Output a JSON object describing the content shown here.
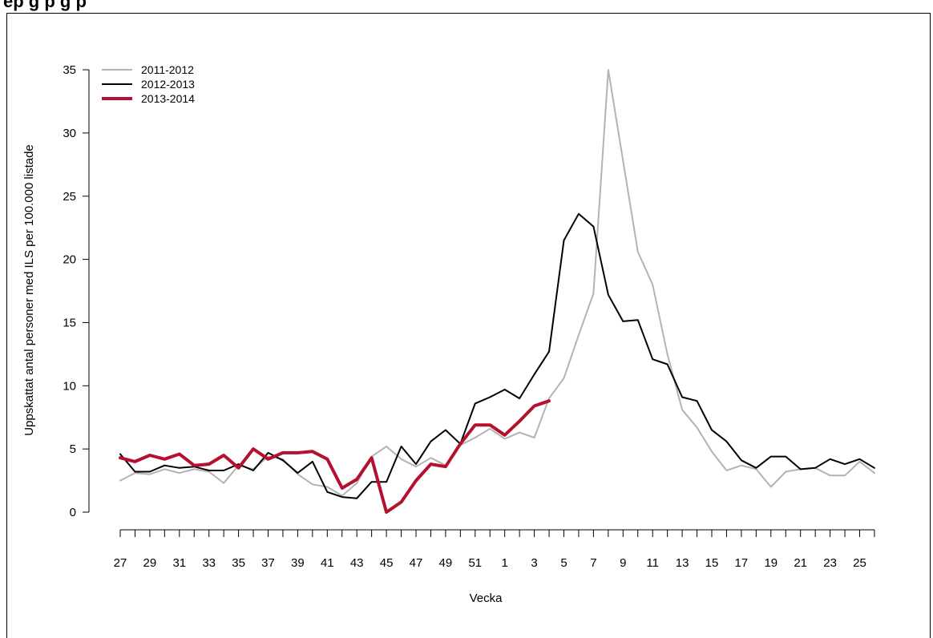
{
  "chart_data": {
    "type": "line",
    "title": "ep                                                                    g p                         g                             p",
    "xlabel": "Vecka",
    "ylabel": "Uppskattat antal personer med ILS per 100.000 listade",
    "ylim": [
      0,
      35
    ],
    "yticks": [
      0,
      5,
      10,
      15,
      20,
      25,
      30,
      35
    ],
    "weeks": [
      27,
      28,
      29,
      30,
      31,
      32,
      33,
      34,
      35,
      36,
      37,
      38,
      39,
      40,
      41,
      42,
      43,
      44,
      45,
      46,
      47,
      48,
      49,
      50,
      51,
      52,
      1,
      2,
      3,
      4,
      5,
      6,
      7,
      8,
      9,
      10,
      11,
      12,
      13,
      14,
      15,
      16,
      17,
      18,
      19,
      20,
      21,
      22,
      23,
      24,
      25,
      26
    ],
    "xtick_labels": [
      "27",
      "29",
      "31",
      "33",
      "35",
      "37",
      "39",
      "41",
      "43",
      "45",
      "47",
      "49",
      "51",
      "1",
      "3",
      "5",
      "7",
      "9",
      "11",
      "13",
      "15",
      "17",
      "19",
      "21",
      "23",
      "25"
    ],
    "legend_position": "top-left",
    "grid": false,
    "series": [
      {
        "name": "2011-2012",
        "color": "#b3b3b3",
        "values": [
          2.5,
          3.1,
          3.0,
          3.4,
          3.1,
          3.4,
          3.2,
          2.3,
          3.7,
          3.4,
          4.4,
          4.2,
          3.0,
          2.2,
          2.0,
          1.3,
          2.3,
          4.4,
          5.2,
          4.2,
          3.6,
          4.3,
          3.7,
          5.3,
          5.9,
          6.6,
          5.8,
          6.3,
          5.9,
          9.0,
          10.6,
          14.0,
          17.3,
          35.0,
          27.8,
          20.6,
          18.0,
          12.5,
          8.1,
          6.7,
          4.8,
          3.3,
          3.7,
          3.4,
          2.0,
          3.2,
          3.4,
          3.5,
          2.9,
          2.9,
          4.0,
          3.1
        ]
      },
      {
        "name": "2012-2013",
        "color": "#000000",
        "values": [
          4.6,
          3.2,
          3.2,
          3.7,
          3.5,
          3.6,
          3.3,
          3.3,
          3.8,
          3.3,
          4.7,
          4.1,
          3.1,
          4.0,
          1.6,
          1.2,
          1.1,
          2.4,
          2.4,
          5.2,
          3.8,
          5.6,
          6.5,
          5.4,
          8.6,
          9.1,
          9.7,
          9.0,
          10.9,
          12.7,
          21.5,
          23.6,
          22.6,
          17.2,
          15.1,
          15.2,
          12.1,
          11.7,
          9.1,
          8.8,
          6.5,
          5.6,
          4.1,
          3.5,
          4.4,
          4.4,
          3.4,
          3.5,
          4.2,
          3.8,
          4.2,
          3.5
        ]
      },
      {
        "name": "2013-2014",
        "color": "#b5112e",
        "values": [
          4.3,
          4.0,
          4.5,
          4.2,
          4.6,
          3.7,
          3.8,
          4.5,
          3.5,
          5.0,
          4.2,
          4.7,
          4.7,
          4.8,
          4.2,
          1.9,
          2.6,
          4.3,
          0.0,
          0.8,
          2.5,
          3.8,
          3.6,
          5.4,
          6.9,
          6.9,
          6.1,
          7.2,
          8.4,
          8.8
        ]
      }
    ]
  }
}
